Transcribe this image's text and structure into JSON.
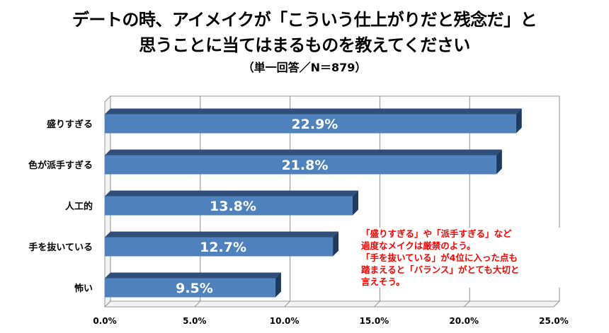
{
  "chart_data": {
    "type": "bar",
    "orientation": "horizontal",
    "title_line1": "デートの時、アイメイクが「こういう仕上がりだと残念だ」と",
    "title_line2": "思うことに当てはまるものを教えてください",
    "subtitle": "（単一回答／N＝879）",
    "categories": [
      "盛りすぎる",
      "色が派手すぎる",
      "人工的",
      "手を抜いている",
      "怖い"
    ],
    "values": [
      22.9,
      21.8,
      13.8,
      12.7,
      9.5
    ],
    "value_labels": [
      "22.9%",
      "21.8%",
      "13.8%",
      "12.7%",
      "9.5%"
    ],
    "xlim": [
      0,
      25
    ],
    "ticks": [
      0,
      5,
      10,
      15,
      20,
      25
    ],
    "tick_labels": [
      "0.0%",
      "5.0%",
      "10.0%",
      "15.0%",
      "20.0%",
      "25.0%"
    ],
    "grid": true,
    "bar_color": "#4f81bd",
    "bar_top_color": "#2f4f7a",
    "bar_side_color": "#1f3a5f",
    "annotation_color": "#ff0000",
    "annotation": [
      "「盛りすぎる」や「派手すぎる」など",
      "過度なメイクは厳禁のよう。",
      "「手を抜いている」が4位に入った点も",
      "踏まえると「バランス」がとても大切と",
      "言えそう。"
    ]
  }
}
